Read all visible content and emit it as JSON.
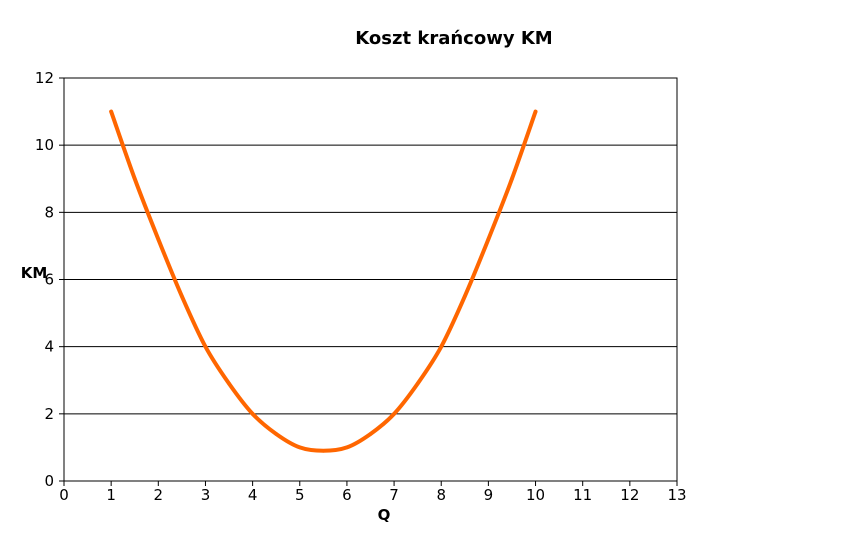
{
  "chart_data": {
    "type": "line",
    "title": "Koszt krańcowy KM",
    "xlabel": "Q",
    "ylabel": "KM",
    "xlim": [
      0,
      13
    ],
    "ylim": [
      0,
      12
    ],
    "x_ticks": [
      "0",
      "1",
      "2",
      "3",
      "4",
      "5",
      "6",
      "7",
      "8",
      "9",
      "10",
      "11",
      "12",
      "13"
    ],
    "y_ticks": [
      "0",
      "2",
      "4",
      "6",
      "8",
      "10",
      "12"
    ],
    "grid": "horizontal",
    "legend": "none",
    "series": [
      {
        "color": "#ff6600",
        "x": [
          1,
          1.5,
          2,
          2.5,
          3,
          3.5,
          4,
          4.5,
          5,
          5.5,
          6,
          6.5,
          7,
          7.5,
          8,
          8.5,
          9,
          9.5,
          10
        ],
        "y": [
          11.0,
          9.0,
          7.2,
          5.5,
          4.0,
          2.9,
          2.0,
          1.4,
          1.0,
          0.9,
          1.0,
          1.4,
          2.0,
          2.9,
          4.0,
          5.5,
          7.2,
          9.0,
          11.0
        ]
      }
    ]
  }
}
